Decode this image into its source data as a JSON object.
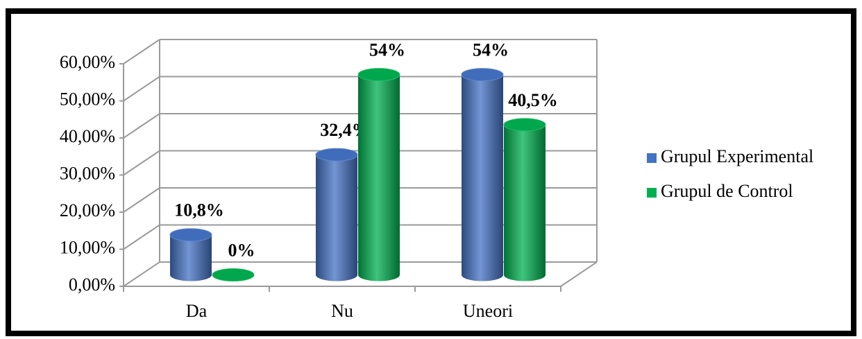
{
  "chart_data": {
    "type": "bar3d",
    "categories": [
      "Da",
      "Nu",
      "Uneori"
    ],
    "series": [
      {
        "name": "Grupul Experimental",
        "color": "#4472c4",
        "values": [
          10.8,
          32.4,
          54
        ],
        "value_labels": [
          "10,8%",
          "32,4%",
          "54%"
        ]
      },
      {
        "name": "Grupul de Control",
        "color": "#00b050",
        "values": [
          0,
          54,
          40.5
        ],
        "value_labels": [
          "0%",
          "54%",
          "40,5%"
        ]
      }
    ],
    "ylim": [
      0,
      60
    ],
    "yticks": [
      {
        "value": 0,
        "label": "0,00%"
      },
      {
        "value": 10,
        "label": "10,00%"
      },
      {
        "value": 20,
        "label": "20,00%"
      },
      {
        "value": 30,
        "label": "30,00%"
      },
      {
        "value": 40,
        "label": "40,00%"
      },
      {
        "value": 50,
        "label": "50,00%"
      },
      {
        "value": 60,
        "label": "60,00%"
      }
    ],
    "grid": true,
    "legend": "right"
  }
}
